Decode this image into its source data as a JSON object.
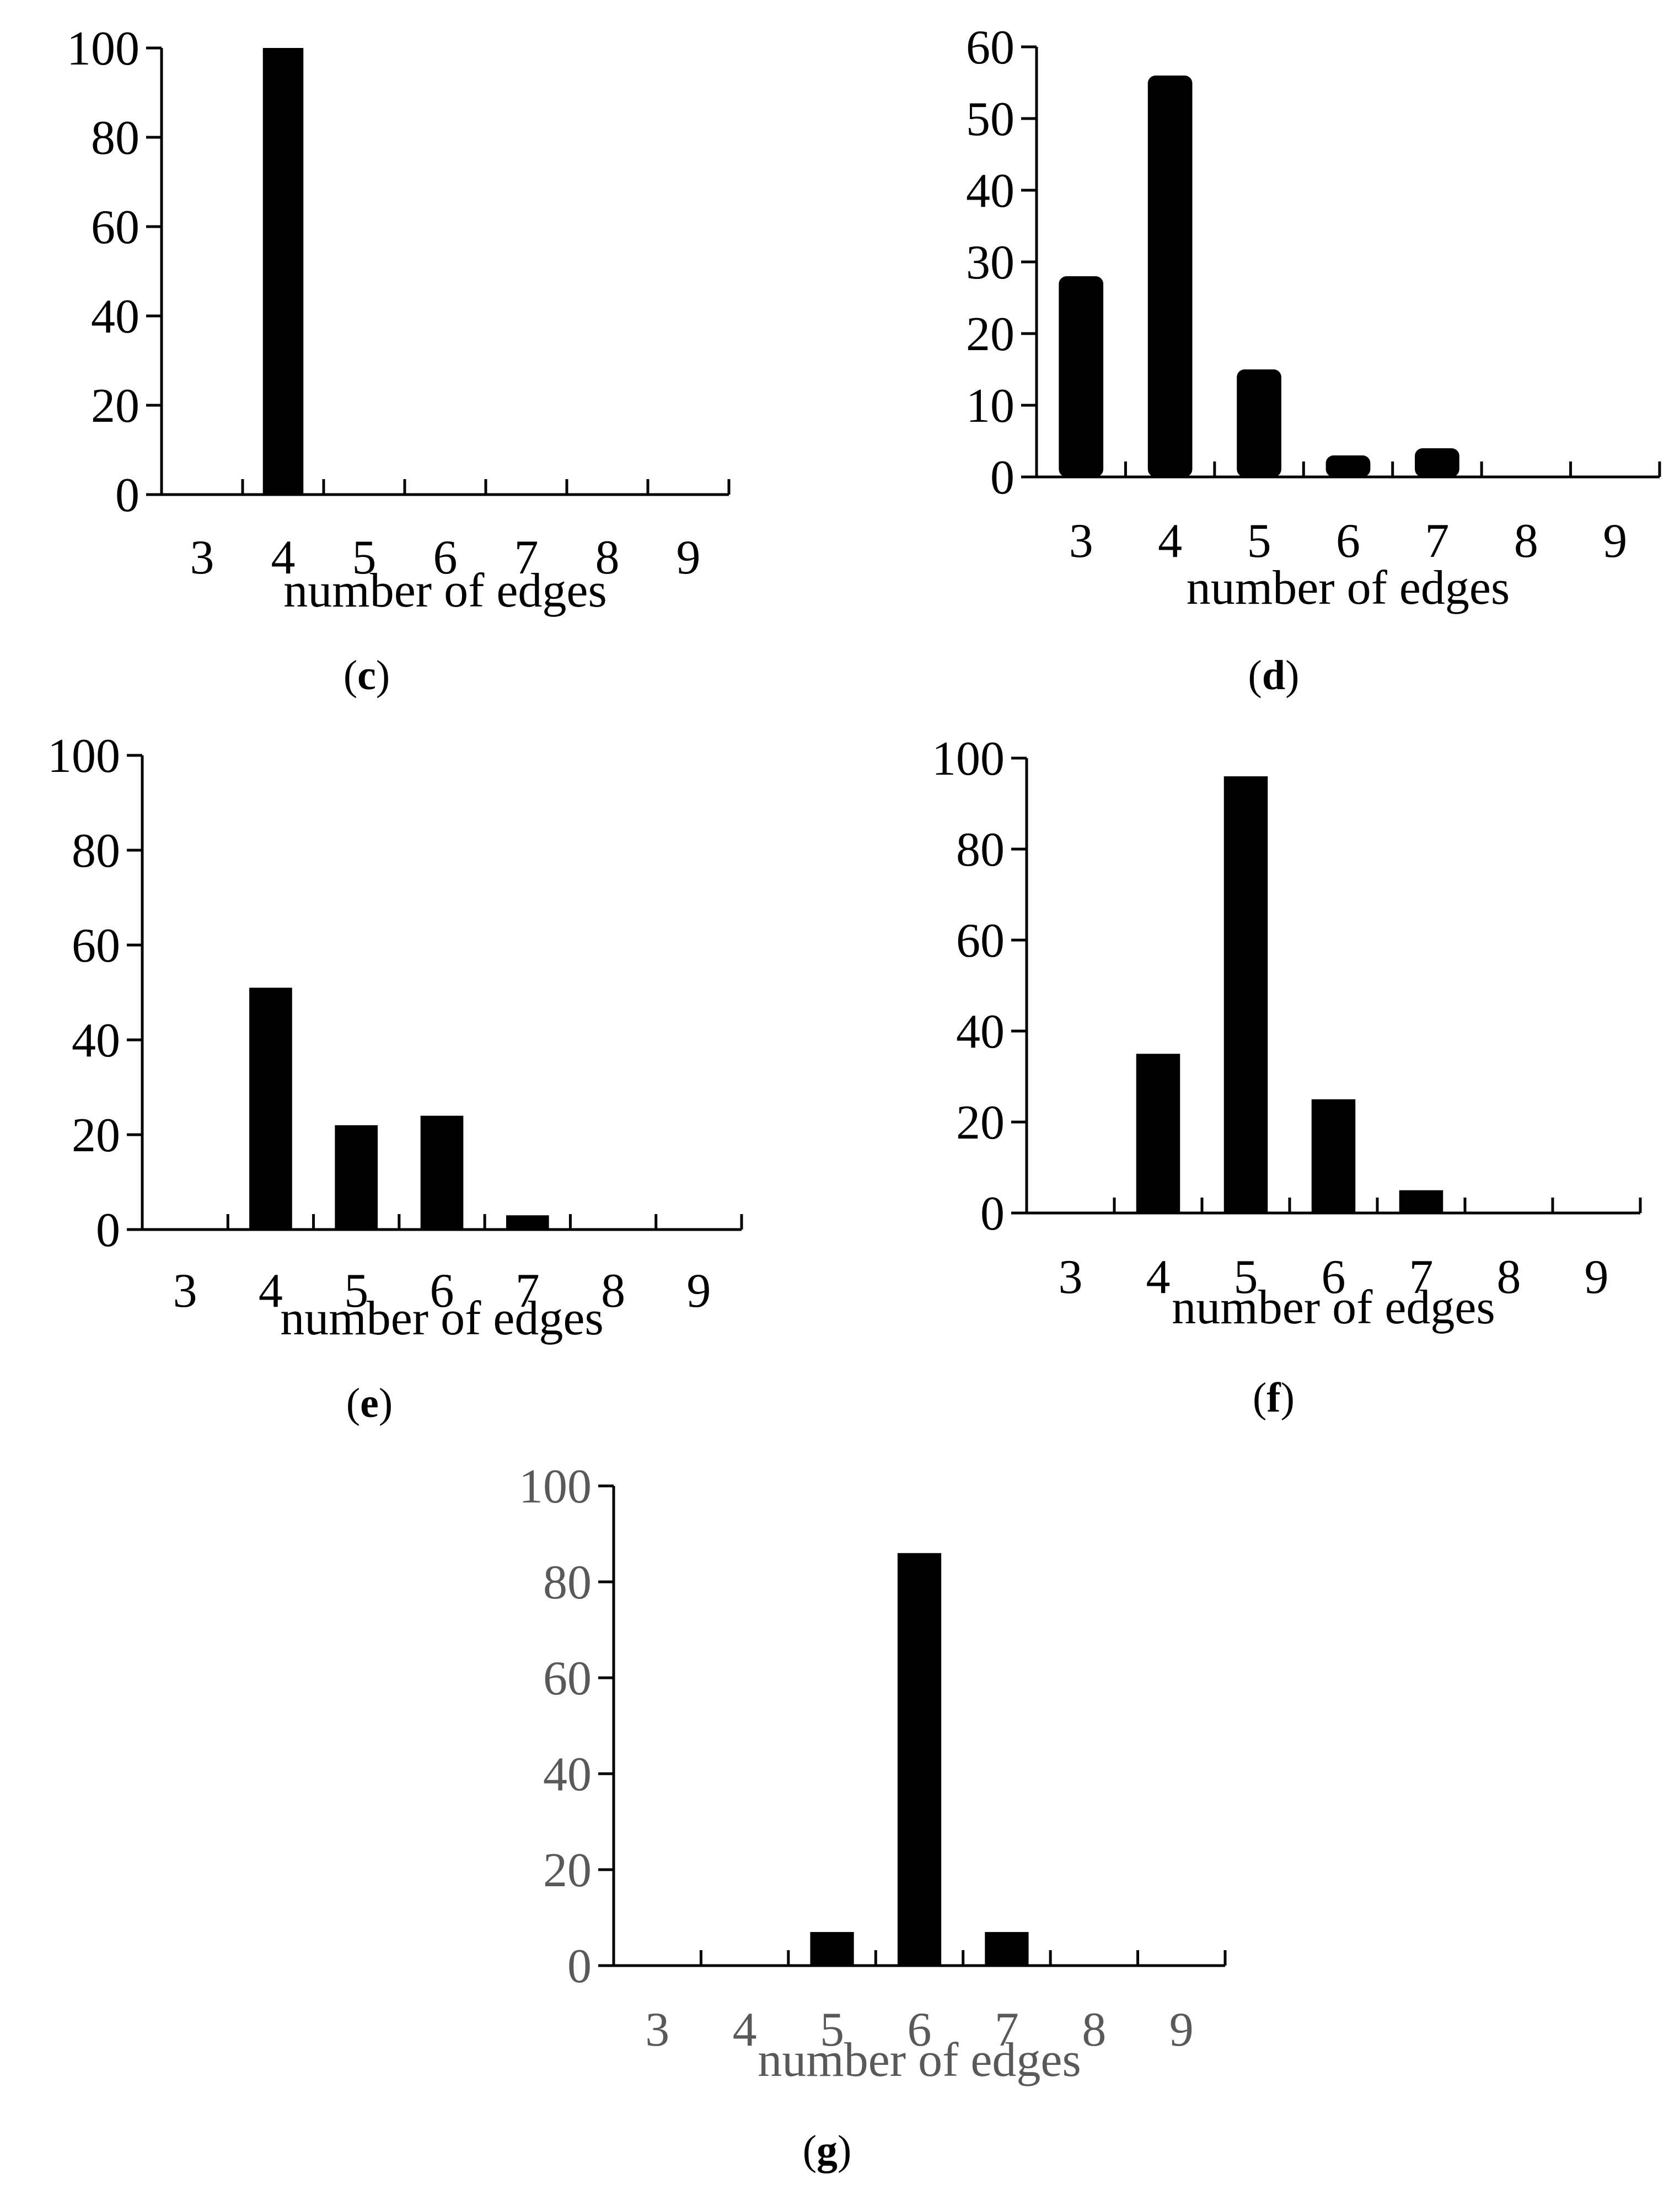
{
  "chart_data": [
    {
      "panel": "c",
      "type": "bar",
      "categories": [
        "3",
        "4",
        "5",
        "6",
        "7",
        "8",
        "9"
      ],
      "values": [
        0,
        100,
        0,
        0,
        0,
        0,
        0
      ],
      "xlabel": "number of edges",
      "ylabel": "",
      "ylim": [
        0,
        100
      ],
      "yticks": [
        "0",
        "20",
        "40",
        "60",
        "80",
        "100"
      ],
      "caption": {
        "open": "(",
        "letter": "c",
        "close": ")"
      },
      "text_color": "#000000"
    },
    {
      "panel": "d",
      "type": "bar",
      "categories": [
        "3",
        "4",
        "5",
        "6",
        "7",
        "8",
        "9"
      ],
      "values": [
        28,
        56,
        15,
        3,
        4,
        0,
        0
      ],
      "xlabel": "number of edges",
      "ylabel": "",
      "ylim": [
        0,
        60
      ],
      "yticks": [
        "0",
        "10",
        "20",
        "30",
        "40",
        "50",
        "60"
      ],
      "caption": {
        "open": "(",
        "letter": "d",
        "close": ")"
      },
      "text_color": "#000000"
    },
    {
      "panel": "e",
      "type": "bar",
      "categories": [
        "3",
        "4",
        "5",
        "6",
        "7",
        "8",
        "9"
      ],
      "values": [
        0,
        51,
        22,
        24,
        3,
        0,
        0
      ],
      "xlabel": "number of edges",
      "ylabel": "",
      "ylim": [
        0,
        100
      ],
      "yticks": [
        "0",
        "20",
        "40",
        "60",
        "80",
        "100"
      ],
      "caption": {
        "open": "(",
        "letter": "e",
        "close": ")"
      },
      "text_color": "#000000"
    },
    {
      "panel": "f",
      "type": "bar",
      "categories": [
        "3",
        "4",
        "5",
        "6",
        "7",
        "8",
        "9"
      ],
      "values": [
        0,
        35,
        96,
        25,
        5,
        0,
        0
      ],
      "xlabel": "number of edges",
      "ylabel": "",
      "ylim": [
        0,
        100
      ],
      "yticks": [
        "0",
        "20",
        "40",
        "60",
        "80",
        "100"
      ],
      "caption": {
        "open": "(",
        "letter": "f",
        "close": ")"
      },
      "text_color": "#000000"
    },
    {
      "panel": "g",
      "type": "bar",
      "categories": [
        "3",
        "4",
        "5",
        "6",
        "7",
        "8",
        "9"
      ],
      "values": [
        0,
        0,
        7,
        86,
        7,
        0,
        0
      ],
      "xlabel": "number of edges",
      "ylabel": "",
      "ylim": [
        0,
        100
      ],
      "yticks": [
        "0",
        "20",
        "40",
        "60",
        "80",
        "100"
      ],
      "caption": {
        "open": "(",
        "letter": "g",
        "close": ")"
      },
      "text_color": "#595959"
    }
  ]
}
